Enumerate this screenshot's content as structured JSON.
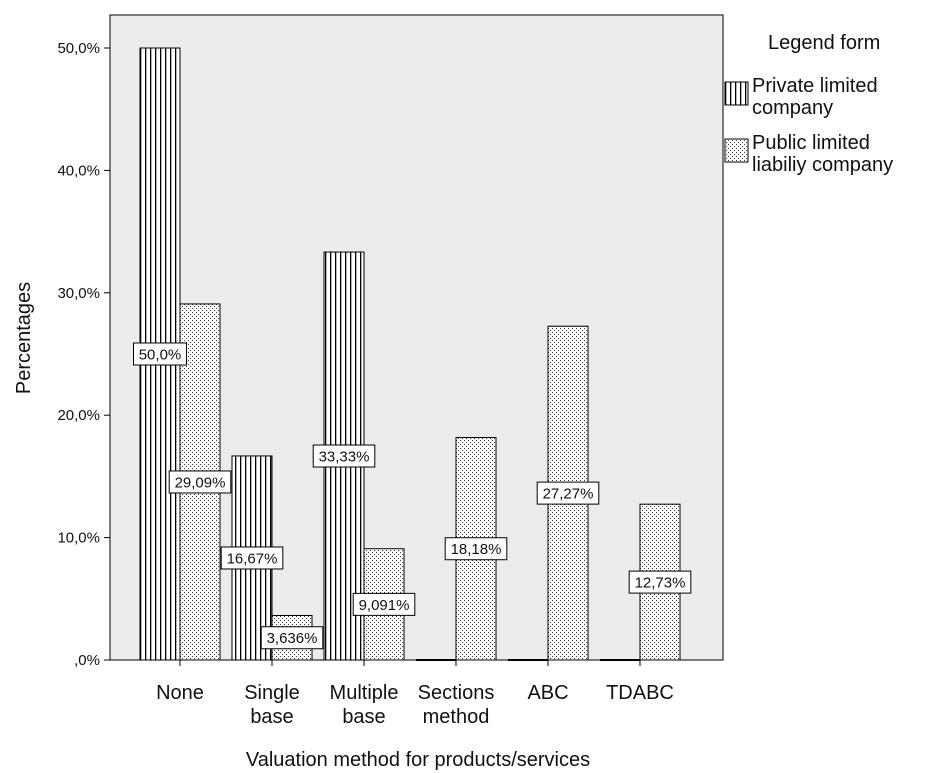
{
  "chart_data": {
    "type": "bar",
    "categories": [
      [
        "None"
      ],
      [
        "Single",
        "base"
      ],
      [
        "Multiple",
        "base"
      ],
      [
        "Sections",
        "method"
      ],
      [
        "ABC"
      ],
      [
        "TDABC"
      ]
    ],
    "series": [
      {
        "name": [
          "Private limited",
          "company"
        ],
        "pattern": "vertical-stripes",
        "values": [
          50.0,
          16.67,
          33.33,
          0,
          0,
          0
        ],
        "labels": [
          "50,0%",
          "16,67%",
          "33,33%",
          "",
          "",
          ""
        ]
      },
      {
        "name": [
          "Public limited",
          "liabiliy company"
        ],
        "pattern": "dots",
        "values": [
          29.09,
          3.636,
          9.091,
          18.18,
          27.27,
          12.73
        ],
        "labels": [
          "29,09%",
          "3,636%",
          "9,091%",
          "18,18%",
          "27,27%",
          "12,73%"
        ]
      }
    ],
    "ylim": [
      0,
      50
    ],
    "yticks": [
      0,
      10,
      20,
      30,
      40,
      50
    ],
    "ytick_labels": [
      ",0%",
      "10,0%",
      "20,0%",
      "30,0%",
      "40,0%",
      "50,0%"
    ],
    "xlabel": "Valuation method for products/services",
    "ylabel": "Percentages",
    "legend": {
      "title": "Legend form",
      "placement": "right"
    },
    "grid": false,
    "plot_background": "#ececec",
    "bar_color": "#ffffff",
    "line_color": "#000000"
  }
}
